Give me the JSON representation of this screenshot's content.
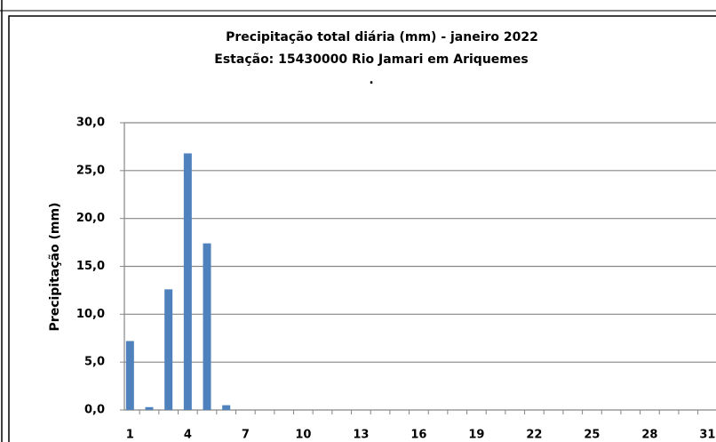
{
  "chart_data": {
    "type": "bar",
    "title": [
      "Precipitação total diária (mm) - janeiro 2022",
      "Estação:  15430000    Rio Jamari em Ariquemes",
      "."
    ],
    "y_label": "Precipitação (mm)",
    "categories": [
      1,
      null,
      null,
      4,
      null,
      null,
      7,
      null,
      null,
      10,
      null,
      null,
      13,
      null,
      null,
      16,
      null,
      null,
      19,
      null,
      null,
      22,
      null,
      null,
      25,
      null,
      null,
      28,
      null,
      null,
      31
    ],
    "values": [
      7.2,
      0.3,
      12.6,
      26.8,
      17.4,
      0.5,
      0,
      0,
      0,
      0,
      0,
      0,
      0,
      0,
      0,
      0,
      0,
      0,
      0,
      0,
      0,
      0,
      0,
      0,
      0,
      0,
      0,
      0,
      0,
      0,
      0
    ],
    "color": "#4f81bd",
    "ylim": [
      0,
      30
    ],
    "yticks": [
      {
        "value": 0,
        "label": "0,0"
      },
      {
        "value": 5,
        "label": "5,0"
      },
      {
        "value": 10,
        "label": "10,0"
      },
      {
        "value": 15,
        "label": "15,0"
      },
      {
        "value": 20,
        "label": "20,0"
      },
      {
        "value": 25,
        "label": "25,0"
      },
      {
        "value": 30,
        "label": "30,0"
      }
    ],
    "grid": true
  }
}
